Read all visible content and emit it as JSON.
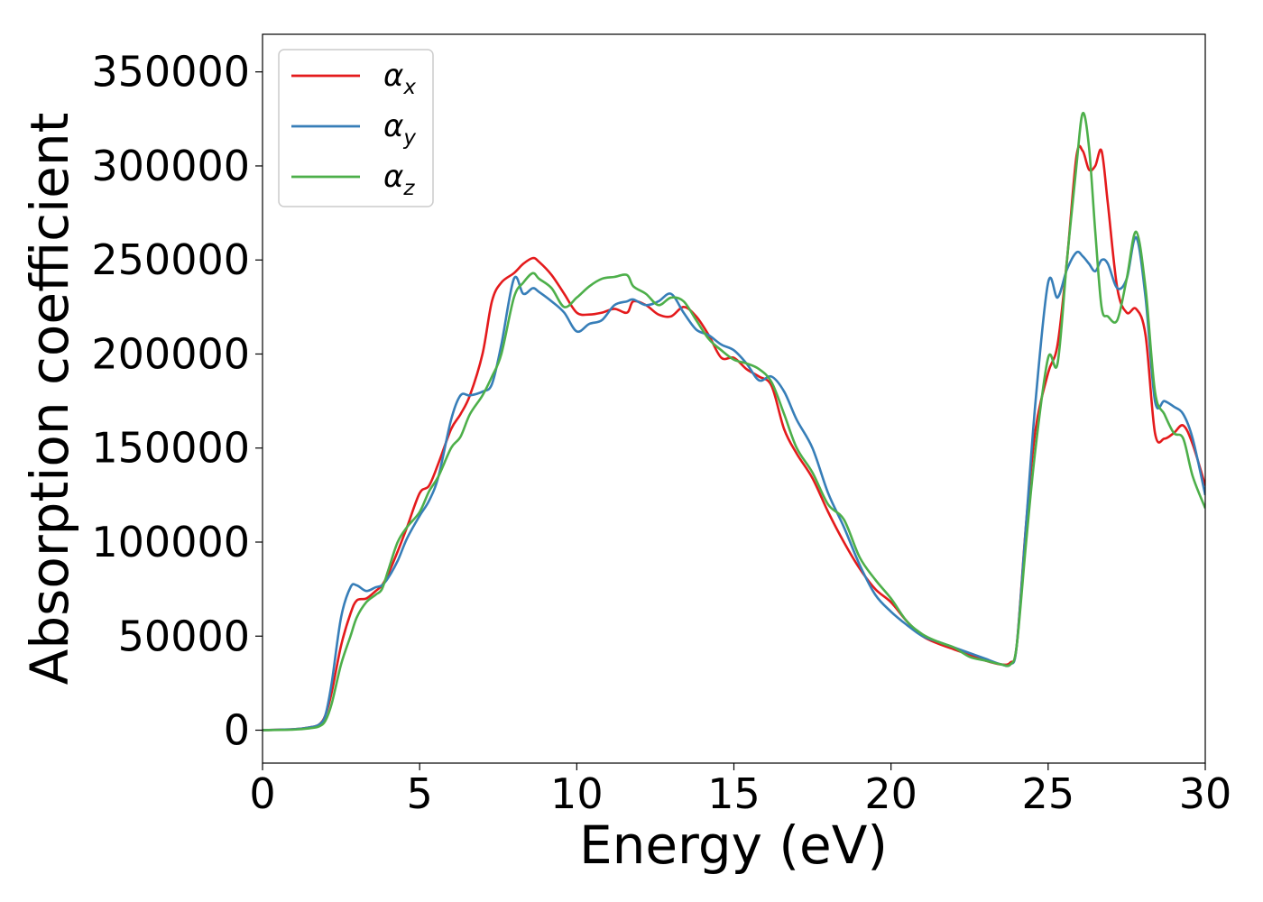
{
  "chart_data": {
    "type": "line",
    "title": "",
    "xlabel": "Energy (eV)",
    "ylabel": "Absorption coefficient",
    "xlim": [
      0,
      30
    ],
    "ylim": [
      -17500,
      370000
    ],
    "xticks": [
      0,
      5,
      10,
      15,
      20,
      25,
      30
    ],
    "yticks": [
      0,
      50000,
      100000,
      150000,
      200000,
      250000,
      300000,
      350000
    ],
    "grid": false,
    "legend_position": "top-left",
    "series": [
      {
        "name": "α",
        "subscript": "x",
        "color": "#e41a1c",
        "x": [
          0,
          1,
          1.5,
          1.8,
          2,
          2.2,
          2.5,
          2.8,
          3,
          3.3,
          3.6,
          3.8,
          4,
          4.3,
          4.6,
          5,
          5.3,
          5.6,
          6,
          6.3,
          6.6,
          7,
          7.3,
          7.6,
          8,
          8.3,
          8.6,
          8.8,
          9.2,
          9.6,
          10,
          10.4,
          10.8,
          11.2,
          11.6,
          11.8,
          12.2,
          12.6,
          13,
          13.4,
          13.8,
          14.2,
          14.6,
          15,
          15.4,
          15.8,
          16.2,
          16.6,
          17,
          17.5,
          18,
          18.5,
          19,
          19.5,
          20,
          20.5,
          21,
          21.5,
          22,
          22.5,
          23,
          23.5,
          23.8,
          24,
          24.3,
          24.6,
          25,
          25.3,
          25.6,
          25.9,
          26.1,
          26.3,
          26.5,
          26.7,
          26.9,
          27.2,
          27.5,
          27.8,
          28.1,
          28.4,
          28.7,
          29,
          29.3,
          29.6,
          30
        ],
        "values": [
          0,
          500,
          1500,
          3000,
          8000,
          20000,
          45000,
          62000,
          69000,
          70000,
          74000,
          77000,
          83000,
          95000,
          108000,
          126000,
          130000,
          142000,
          160000,
          168000,
          178000,
          200000,
          228000,
          238000,
          243000,
          248000,
          251000,
          249000,
          242000,
          232000,
          222000,
          221000,
          222000,
          224000,
          222000,
          228000,
          226000,
          221000,
          220000,
          225000,
          220000,
          210000,
          198000,
          198000,
          192000,
          188000,
          183000,
          160000,
          147000,
          134000,
          116000,
          100000,
          86000,
          75000,
          68000,
          58000,
          50000,
          46000,
          43000,
          40000,
          37000,
          35000,
          36000,
          45000,
          110000,
          160000,
          190000,
          205000,
          250000,
          305000,
          308000,
          298000,
          300000,
          308000,
          280000,
          235000,
          222000,
          224000,
          210000,
          158000,
          155000,
          158000,
          162000,
          152000,
          130000
        ]
      },
      {
        "name": "α",
        "subscript": "y",
        "color": "#377eb8",
        "x": [
          0,
          1,
          1.5,
          1.8,
          2,
          2.2,
          2.5,
          2.8,
          3,
          3.3,
          3.6,
          3.8,
          4,
          4.3,
          4.6,
          5,
          5.3,
          5.6,
          6,
          6.3,
          6.6,
          7,
          7.3,
          7.6,
          8,
          8.3,
          8.6,
          8.8,
          9.2,
          9.6,
          10,
          10.4,
          10.8,
          11.2,
          11.6,
          11.8,
          12.2,
          12.6,
          13,
          13.4,
          13.8,
          14.2,
          14.6,
          15,
          15.4,
          15.8,
          16.2,
          16.6,
          17,
          17.5,
          18,
          18.5,
          19,
          19.5,
          20,
          20.5,
          21,
          21.5,
          22,
          22.5,
          23,
          23.5,
          23.8,
          24,
          24.3,
          24.6,
          25,
          25.3,
          25.6,
          25.9,
          26.1,
          26.3,
          26.5,
          26.7,
          26.9,
          27.2,
          27.5,
          27.8,
          28.1,
          28.4,
          28.7,
          29,
          29.3,
          29.6,
          30
        ],
        "values": [
          0,
          500,
          1500,
          3000,
          8000,
          25000,
          60000,
          76000,
          77000,
          74000,
          76000,
          77000,
          81000,
          90000,
          102000,
          114000,
          122000,
          135000,
          165000,
          178000,
          178000,
          180000,
          184000,
          205000,
          240000,
          232000,
          235000,
          233000,
          228000,
          222000,
          212000,
          216000,
          218000,
          226000,
          228000,
          229000,
          226000,
          228000,
          232000,
          222000,
          213000,
          210000,
          205000,
          202000,
          195000,
          186000,
          188000,
          180000,
          165000,
          150000,
          126000,
          108000,
          88000,
          72000,
          63000,
          56000,
          50000,
          47000,
          44000,
          41000,
          38000,
          35000,
          35000,
          45000,
          110000,
          175000,
          238000,
          230000,
          245000,
          254000,
          252000,
          248000,
          244000,
          250000,
          248000,
          235000,
          240000,
          262000,
          230000,
          175000,
          175000,
          172000,
          168000,
          155000,
          125000
        ]
      },
      {
        "name": "α",
        "subscript": "z",
        "color": "#4daf4a",
        "x": [
          0,
          1,
          1.5,
          1.8,
          2,
          2.2,
          2.5,
          2.8,
          3,
          3.3,
          3.6,
          3.8,
          4,
          4.3,
          4.6,
          5,
          5.3,
          5.6,
          6,
          6.3,
          6.6,
          7,
          7.3,
          7.6,
          8,
          8.3,
          8.6,
          8.8,
          9.2,
          9.6,
          10,
          10.4,
          10.8,
          11.2,
          11.6,
          11.8,
          12.2,
          12.6,
          13,
          13.4,
          13.8,
          14.2,
          14.6,
          15,
          15.4,
          15.8,
          16.2,
          16.6,
          17,
          17.5,
          18,
          18.5,
          19,
          19.5,
          20,
          20.5,
          21,
          21.5,
          22,
          22.5,
          23,
          23.5,
          23.8,
          24,
          24.3,
          24.6,
          25,
          25.3,
          25.6,
          25.9,
          26.1,
          26.3,
          26.5,
          26.7,
          26.9,
          27.2,
          27.5,
          27.8,
          28.1,
          28.4,
          28.7,
          29,
          29.3,
          29.6,
          30
        ],
        "values": [
          0,
          300,
          1000,
          2000,
          5000,
          14000,
          35000,
          50000,
          60000,
          68000,
          72000,
          75000,
          85000,
          100000,
          108000,
          116000,
          127000,
          135000,
          150000,
          156000,
          168000,
          178000,
          188000,
          200000,
          230000,
          238000,
          243000,
          240000,
          235000,
          225000,
          230000,
          236000,
          240000,
          241000,
          242000,
          236000,
          232000,
          226000,
          230000,
          228000,
          218000,
          208000,
          202000,
          197000,
          195000,
          192000,
          185000,
          168000,
          150000,
          137000,
          120000,
          112000,
          92000,
          80000,
          70000,
          58000,
          51000,
          47000,
          44000,
          39000,
          37000,
          35000,
          35000,
          45000,
          100000,
          150000,
          198000,
          195000,
          250000,
          300000,
          328000,
          310000,
          265000,
          225000,
          220000,
          218000,
          240000,
          265000,
          235000,
          180000,
          168000,
          158000,
          155000,
          135000,
          118000
        ]
      }
    ]
  }
}
